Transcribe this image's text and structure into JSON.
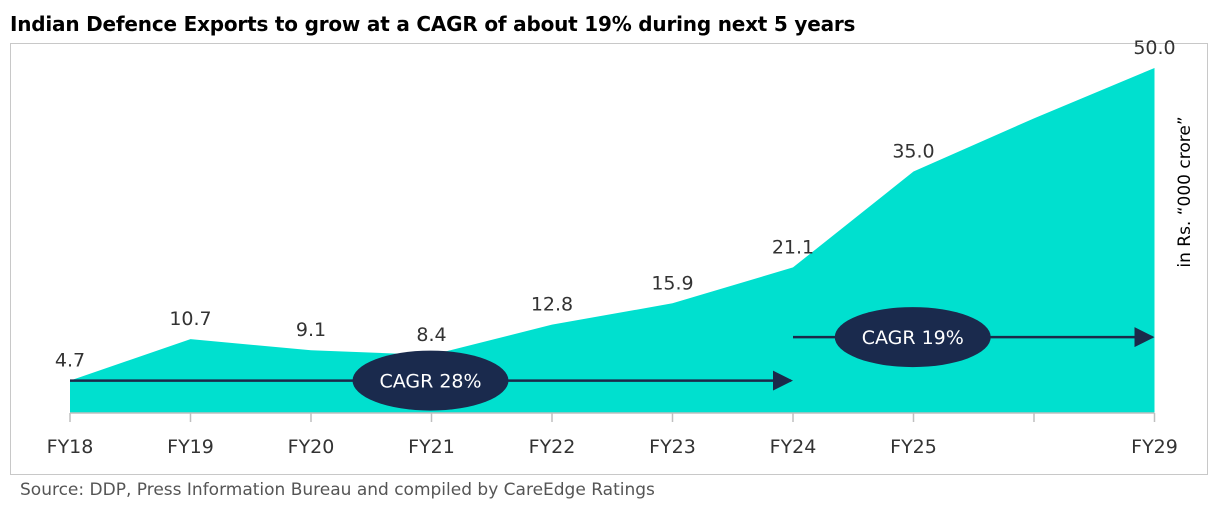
{
  "title": "Indian Defence Exports to grow at a CAGR of about 19% during next 5 years",
  "source": "Source: DDP, Press Information Bureau and compiled by CareEdge Ratings",
  "colors": {
    "area": "#00e0cf",
    "arrow": "#1b2a4a",
    "ellipse": "#1a2a4d",
    "axis": "#bfbfbf"
  },
  "chart_data": {
    "type": "area",
    "ylabel": "in Rs. “000 crore”",
    "ylim": [
      0,
      50
    ],
    "x_ticks": [
      "FY18",
      "FY19",
      "FY20",
      "FY21",
      "FY22",
      "FY23",
      "FY24",
      "FY25",
      "",
      "FY29"
    ],
    "points": [
      {
        "x": 0,
        "label": "FY18",
        "value": 4.7,
        "value_label": "4.7"
      },
      {
        "x": 1,
        "label": "FY19",
        "value": 10.7,
        "value_label": "10.7"
      },
      {
        "x": 2,
        "label": "FY20",
        "value": 9.1,
        "value_label": "9.1"
      },
      {
        "x": 3,
        "label": "FY21",
        "value": 8.4,
        "value_label": "8.4"
      },
      {
        "x": 4,
        "label": "FY22",
        "value": 12.8,
        "value_label": "12.8"
      },
      {
        "x": 5,
        "label": "FY23",
        "value": 15.9,
        "value_label": "15.9"
      },
      {
        "x": 6,
        "label": "FY24",
        "value": 21.1,
        "value_label": "21.1"
      },
      {
        "x": 7,
        "label": "FY25",
        "value": 35.0,
        "value_label": "35.0"
      },
      {
        "x": 8,
        "label": "",
        "value": 42.7,
        "value_label": ""
      },
      {
        "x": 9,
        "label": "FY29",
        "value": 50.0,
        "value_label": "50.0"
      }
    ],
    "annotations": [
      {
        "text": "CAGR 28%",
        "from_x": 0,
        "to_x": 6,
        "level": 4.7
      },
      {
        "text": "CAGR 19%",
        "from_x": 6,
        "to_x": 9,
        "level": 11.0
      }
    ]
  }
}
